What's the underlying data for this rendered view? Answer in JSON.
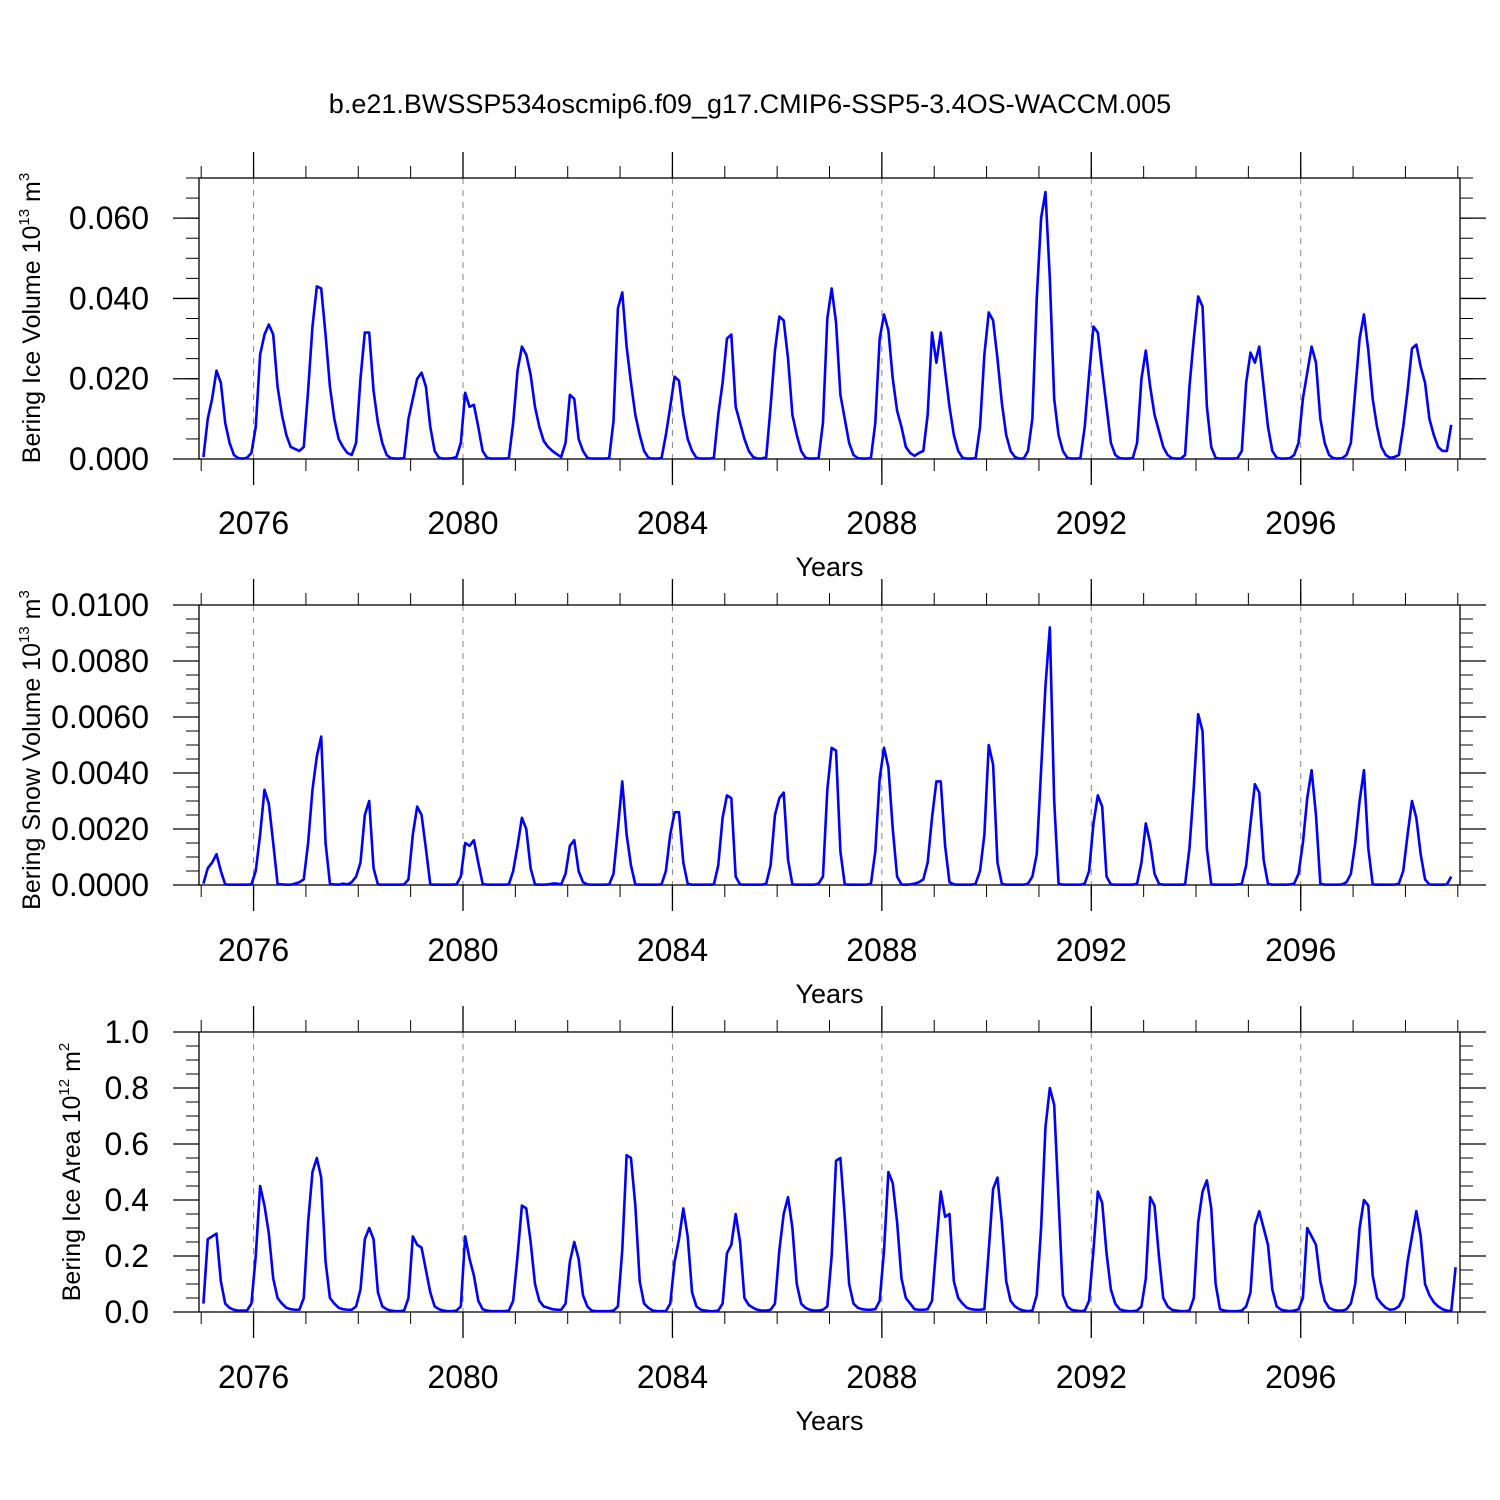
{
  "title": "b.e21.BWSSP534oscmip6.f09_g17.CMIP6-SSP5-3.4OS-WACCM.005",
  "colors": {
    "line": "#0000ff",
    "axis": "#000000",
    "grid": "#888888"
  },
  "chart_data": [
    {
      "type": "line",
      "ylabel": {
        "text": "Bering Ice Volume 10",
        "exp": "13",
        "unit": " m",
        "unit_exp": "3"
      },
      "xlabel": "Years",
      "x_start": 2075.042,
      "x_step": 0.08333,
      "xlim": [
        2074.958,
        2099.042
      ],
      "ylim": [
        0,
        0.07
      ],
      "yticks": [
        0.0,
        0.02,
        0.04,
        0.06
      ],
      "ytick_labels": [
        "0.000",
        "0.020",
        "0.040",
        "0.060"
      ],
      "yminor_step": 0.005,
      "xticks": [
        2076,
        2080,
        2084,
        2088,
        2092,
        2096
      ],
      "xtick_labels": [
        "2076",
        "2080",
        "2084",
        "2088",
        "2092",
        "2096"
      ],
      "values": [
        0.0005,
        0.01,
        0.015,
        0.022,
        0.019,
        0.009,
        0.004,
        0.001,
        0.0002,
        0.0001,
        0.0003,
        0.0015,
        0.008,
        0.026,
        0.031,
        0.0335,
        0.031,
        0.018,
        0.011,
        0.006,
        0.003,
        0.0025,
        0.002,
        0.003,
        0.017,
        0.033,
        0.043,
        0.0425,
        0.031,
        0.018,
        0.01,
        0.005,
        0.003,
        0.0015,
        0.001,
        0.004,
        0.02,
        0.0315,
        0.0315,
        0.017,
        0.009,
        0.004,
        0.001,
        0.0002,
        0.0001,
        0.0001,
        0.0002,
        0.01,
        0.015,
        0.02,
        0.0215,
        0.018,
        0.008,
        0.002,
        0.0003,
        0.0001,
        0.0001,
        0.0002,
        0.0005,
        0.004,
        0.0165,
        0.013,
        0.0135,
        0.008,
        0.002,
        0.0003,
        0.0001,
        0.0001,
        0.0001,
        0.0001,
        0.0002,
        0.009,
        0.022,
        0.028,
        0.026,
        0.021,
        0.013,
        0.008,
        0.0045,
        0.003,
        0.002,
        0.0012,
        0.0005,
        0.004,
        0.016,
        0.015,
        0.005,
        0.002,
        0.0003,
        0.0001,
        0.0001,
        0.0001,
        0.0001,
        0.0002,
        0.0095,
        0.0375,
        0.0415,
        0.028,
        0.019,
        0.011,
        0.006,
        0.002,
        0.0003,
        0.0001,
        0.0001,
        0.0002,
        0.006,
        0.013,
        0.0205,
        0.0195,
        0.011,
        0.005,
        0.002,
        0.0003,
        0.0001,
        0.0001,
        0.0001,
        0.0003,
        0.011,
        0.019,
        0.03,
        0.031,
        0.013,
        0.009,
        0.005,
        0.002,
        0.0005,
        0.0001,
        0.0001,
        0.0005,
        0.013,
        0.027,
        0.0355,
        0.0345,
        0.025,
        0.011,
        0.006,
        0.002,
        0.0003,
        0.0001,
        0.0001,
        0.0002,
        0.009,
        0.035,
        0.0425,
        0.034,
        0.016,
        0.01,
        0.004,
        0.001,
        0.0002,
        0.0001,
        0.0001,
        0.0003,
        0.009,
        0.03,
        0.036,
        0.032,
        0.02,
        0.012,
        0.008,
        0.003,
        0.0015,
        0.0008,
        0.0015,
        0.002,
        0.011,
        0.0315,
        0.024,
        0.0315,
        0.022,
        0.013,
        0.006,
        0.002,
        0.0003,
        0.0001,
        0.0001,
        0.0002,
        0.008,
        0.026,
        0.0365,
        0.0345,
        0.025,
        0.014,
        0.006,
        0.002,
        0.0005,
        0.0001,
        0.0001,
        0.002,
        0.01,
        0.04,
        0.06,
        0.0665,
        0.045,
        0.015,
        0.006,
        0.002,
        0.0003,
        0.0001,
        0.0001,
        0.0002,
        0.008,
        0.021,
        0.033,
        0.0315,
        0.022,
        0.013,
        0.004,
        0.001,
        0.0002,
        0.0001,
        0.0001,
        0.0002,
        0.004,
        0.02,
        0.027,
        0.018,
        0.011,
        0.007,
        0.003,
        0.001,
        0.0002,
        0.0001,
        0.0001,
        0.001,
        0.018,
        0.03,
        0.0405,
        0.038,
        0.013,
        0.003,
        0.0003,
        0.0001,
        0.0001,
        0.0001,
        0.0001,
        0.0002,
        0.002,
        0.019,
        0.0265,
        0.024,
        0.028,
        0.018,
        0.008,
        0.002,
        0.0003,
        0.0001,
        0.0001,
        0.0002,
        0.001,
        0.004,
        0.015,
        0.0215,
        0.028,
        0.024,
        0.01,
        0.004,
        0.001,
        0.0002,
        0.0001,
        0.0002,
        0.001,
        0.004,
        0.017,
        0.03,
        0.036,
        0.027,
        0.015,
        0.008,
        0.003,
        0.001,
        0.0003,
        0.0005,
        0.001,
        0.008,
        0.017,
        0.0275,
        0.0285,
        0.023,
        0.019,
        0.01,
        0.006,
        0.003,
        0.002,
        0.002,
        0.0085
      ]
    },
    {
      "type": "line",
      "ylabel": {
        "text": "Bering Snow Volume 10",
        "exp": "13",
        "unit": " m",
        "unit_exp": "3"
      },
      "xlabel": "Years",
      "x_start": 2075.042,
      "x_step": 0.08333,
      "xlim": [
        2074.958,
        2099.042
      ],
      "ylim": [
        0,
        0.01
      ],
      "yticks": [
        0.0,
        0.002,
        0.004,
        0.006,
        0.008,
        0.01
      ],
      "ytick_labels": [
        "0.0000",
        "0.0020",
        "0.0040",
        "0.0060",
        "0.0080",
        "0.0100"
      ],
      "yminor_step": 0.0005,
      "xticks": [
        2076,
        2080,
        2084,
        2088,
        2092,
        2096
      ],
      "xtick_labels": [
        "2076",
        "2080",
        "2084",
        "2088",
        "2092",
        "2096"
      ],
      "values": [
        5e-05,
        0.0006,
        0.0008,
        0.0011,
        0.0005,
        2e-05,
        1e-05,
        1e-05,
        1e-05,
        1e-05,
        1e-05,
        2e-05,
        0.0005,
        0.0018,
        0.0034,
        0.0029,
        0.0015,
        5e-05,
        2e-05,
        1e-05,
        1e-05,
        5e-05,
        0.0001,
        0.0002,
        0.0015,
        0.0034,
        0.0046,
        0.0053,
        0.0015,
        5e-05,
        2e-05,
        1e-05,
        5e-05,
        2e-05,
        0.0001,
        0.0003,
        0.0008,
        0.0025,
        0.003,
        0.0006,
        2e-05,
        1e-05,
        1e-05,
        1e-05,
        1e-05,
        1e-05,
        2e-05,
        0.0002,
        0.0018,
        0.0028,
        0.0025,
        0.0013,
        2e-05,
        1e-05,
        1e-05,
        1e-05,
        1e-05,
        1e-05,
        2e-05,
        0.0003,
        0.0015,
        0.0014,
        0.0016,
        0.0008,
        5e-05,
        1e-05,
        1e-05,
        1e-05,
        1e-05,
        1e-05,
        2e-05,
        0.0005,
        0.0014,
        0.0024,
        0.002,
        0.0006,
        2e-05,
        1e-05,
        1e-05,
        2e-05,
        5e-05,
        5e-05,
        2e-05,
        0.0004,
        0.0014,
        0.0016,
        0.0005,
        0.0001,
        2e-05,
        1e-05,
        1e-05,
        1e-05,
        1e-05,
        2e-05,
        0.0004,
        0.002,
        0.0037,
        0.0018,
        0.0007,
        2e-05,
        1e-05,
        1e-05,
        1e-05,
        1e-05,
        1e-05,
        2e-05,
        0.0005,
        0.0018,
        0.0026,
        0.0026,
        0.0008,
        5e-05,
        1e-05,
        1e-05,
        1e-05,
        1e-05,
        1e-05,
        2e-05,
        0.0007,
        0.0024,
        0.0032,
        0.0031,
        0.0003,
        2e-05,
        1e-05,
        1e-05,
        1e-05,
        1e-05,
        1e-05,
        5e-05,
        0.0007,
        0.0025,
        0.0031,
        0.0033,
        0.0009,
        2e-05,
        1e-05,
        1e-05,
        1e-05,
        1e-05,
        1e-05,
        5e-05,
        0.0003,
        0.0034,
        0.0049,
        0.0048,
        0.0012,
        2e-05,
        1e-05,
        1e-05,
        1e-05,
        1e-05,
        1e-05,
        5e-05,
        0.0012,
        0.0038,
        0.0049,
        0.0042,
        0.002,
        0.0003,
        2e-05,
        1e-05,
        2e-05,
        5e-05,
        0.0001,
        0.0002,
        0.0008,
        0.0024,
        0.0037,
        0.0037,
        0.0014,
        0.0001,
        2e-05,
        1e-05,
        1e-05,
        1e-05,
        1e-05,
        5e-05,
        0.0005,
        0.0018,
        0.005,
        0.0043,
        0.0008,
        5e-05,
        1e-05,
        1e-05,
        1e-05,
        1e-05,
        1e-05,
        5e-05,
        0.0003,
        0.0011,
        0.0041,
        0.0071,
        0.0092,
        0.003,
        5e-05,
        1e-05,
        1e-05,
        1e-05,
        1e-05,
        1e-05,
        5e-05,
        0.0005,
        0.0022,
        0.0032,
        0.0028,
        0.0003,
        2e-05,
        1e-05,
        1e-05,
        1e-05,
        1e-05,
        1e-05,
        5e-05,
        0.0008,
        0.0022,
        0.0015,
        0.0004,
        5e-05,
        1e-05,
        1e-05,
        1e-05,
        1e-05,
        1e-05,
        2e-05,
        0.0013,
        0.0035,
        0.0061,
        0.0055,
        0.0013,
        2e-05,
        1e-05,
        1e-05,
        1e-05,
        1e-05,
        1e-05,
        2e-05,
        5e-05,
        0.0007,
        0.0022,
        0.0036,
        0.0033,
        0.0009,
        5e-05,
        1e-05,
        1e-05,
        1e-05,
        1e-05,
        2e-05,
        5e-05,
        0.0004,
        0.0015,
        0.0031,
        0.0041,
        0.0025,
        5e-05,
        1e-05,
        1e-05,
        1e-05,
        1e-05,
        2e-05,
        0.0001,
        0.0004,
        0.0015,
        0.003,
        0.0041,
        0.0013,
        2e-05,
        1e-05,
        1e-05,
        1e-05,
        1e-05,
        1e-05,
        5e-05,
        0.0005,
        0.0018,
        0.003,
        0.0024,
        0.0011,
        0.0002,
        2e-05,
        1e-05,
        1e-05,
        1e-05,
        2e-05,
        0.0003
      ]
    },
    {
      "type": "line",
      "ylabel": {
        "text": "Bering Ice Area 10",
        "exp": "12",
        "unit": " m",
        "unit_exp": "2"
      },
      "xlabel": "Years",
      "x_start": 2075.042,
      "x_step": 0.08333,
      "xlim": [
        2074.958,
        2099.042
      ],
      "ylim": [
        0,
        1.0
      ],
      "yticks": [
        0.0,
        0.2,
        0.4,
        0.6,
        0.8,
        1.0
      ],
      "ytick_labels": [
        "0.0",
        "0.2",
        "0.4",
        "0.6",
        "0.8",
        "1.0"
      ],
      "yminor_step": 0.05,
      "xticks": [
        2076,
        2080,
        2084,
        2088,
        2092,
        2096
      ],
      "xtick_labels": [
        "2076",
        "2080",
        "2084",
        "2088",
        "2092",
        "2096"
      ],
      "values": [
        0.03,
        0.26,
        0.27,
        0.28,
        0.11,
        0.03,
        0.015,
        0.008,
        0.005,
        0.005,
        0.005,
        0.03,
        0.2,
        0.45,
        0.38,
        0.28,
        0.12,
        0.05,
        0.03,
        0.015,
        0.01,
        0.008,
        0.008,
        0.05,
        0.32,
        0.5,
        0.55,
        0.48,
        0.18,
        0.05,
        0.03,
        0.015,
        0.01,
        0.008,
        0.008,
        0.02,
        0.08,
        0.26,
        0.3,
        0.26,
        0.07,
        0.02,
        0.01,
        0.005,
        0.003,
        0.003,
        0.005,
        0.05,
        0.27,
        0.24,
        0.23,
        0.15,
        0.07,
        0.02,
        0.01,
        0.005,
        0.003,
        0.003,
        0.005,
        0.02,
        0.27,
        0.19,
        0.13,
        0.04,
        0.01,
        0.005,
        0.003,
        0.003,
        0.003,
        0.003,
        0.005,
        0.04,
        0.2,
        0.38,
        0.37,
        0.25,
        0.1,
        0.04,
        0.02,
        0.015,
        0.01,
        0.008,
        0.008,
        0.03,
        0.18,
        0.25,
        0.19,
        0.06,
        0.02,
        0.005,
        0.003,
        0.003,
        0.003,
        0.003,
        0.005,
        0.02,
        0.22,
        0.56,
        0.55,
        0.38,
        0.11,
        0.03,
        0.015,
        0.005,
        0.003,
        0.003,
        0.003,
        0.03,
        0.18,
        0.26,
        0.37,
        0.27,
        0.07,
        0.02,
        0.008,
        0.005,
        0.003,
        0.003,
        0.005,
        0.03,
        0.21,
        0.24,
        0.35,
        0.25,
        0.05,
        0.025,
        0.015,
        0.008,
        0.005,
        0.005,
        0.008,
        0.03,
        0.22,
        0.35,
        0.41,
        0.3,
        0.1,
        0.03,
        0.015,
        0.008,
        0.005,
        0.005,
        0.008,
        0.02,
        0.2,
        0.54,
        0.55,
        0.34,
        0.1,
        0.03,
        0.015,
        0.01,
        0.008,
        0.008,
        0.01,
        0.04,
        0.22,
        0.5,
        0.46,
        0.32,
        0.12,
        0.05,
        0.03,
        0.01,
        0.008,
        0.008,
        0.01,
        0.04,
        0.24,
        0.43,
        0.34,
        0.35,
        0.11,
        0.05,
        0.03,
        0.015,
        0.01,
        0.008,
        0.008,
        0.01,
        0.22,
        0.44,
        0.48,
        0.32,
        0.11,
        0.04,
        0.02,
        0.01,
        0.005,
        0.003,
        0.005,
        0.06,
        0.3,
        0.66,
        0.8,
        0.74,
        0.4,
        0.06,
        0.02,
        0.008,
        0.005,
        0.003,
        0.005,
        0.04,
        0.22,
        0.43,
        0.39,
        0.21,
        0.08,
        0.03,
        0.01,
        0.005,
        0.003,
        0.003,
        0.005,
        0.02,
        0.12,
        0.41,
        0.38,
        0.2,
        0.05,
        0.02,
        0.008,
        0.005,
        0.003,
        0.003,
        0.005,
        0.05,
        0.32,
        0.43,
        0.47,
        0.37,
        0.1,
        0.01,
        0.005,
        0.003,
        0.003,
        0.003,
        0.005,
        0.02,
        0.07,
        0.31,
        0.36,
        0.3,
        0.24,
        0.08,
        0.02,
        0.008,
        0.005,
        0.003,
        0.005,
        0.01,
        0.05,
        0.3,
        0.27,
        0.24,
        0.11,
        0.04,
        0.015,
        0.008,
        0.005,
        0.005,
        0.01,
        0.03,
        0.1,
        0.3,
        0.4,
        0.38,
        0.13,
        0.05,
        0.03,
        0.015,
        0.008,
        0.01,
        0.02,
        0.05,
        0.18,
        0.27,
        0.36,
        0.27,
        0.1,
        0.06,
        0.035,
        0.02,
        0.01,
        0.005,
        0.003,
        0.16
      ]
    }
  ]
}
